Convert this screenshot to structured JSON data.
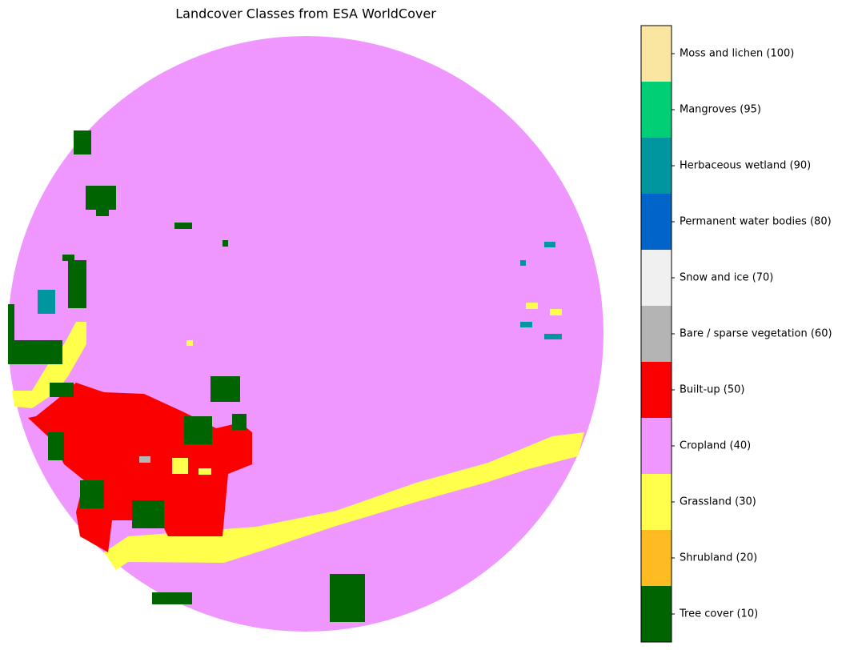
{
  "title": "Landcover Classes from ESA WorldCover",
  "legend": [
    {
      "label": "Tree cover (10)",
      "color": "#006400"
    },
    {
      "label": "Shrubland (20)",
      "color": "#ffbb22"
    },
    {
      "label": "Grassland (30)",
      "color": "#ffff4c"
    },
    {
      "label": "Cropland (40)",
      "color": "#f096ff"
    },
    {
      "label": "Built-up (50)",
      "color": "#fa0000"
    },
    {
      "label": "Bare / sparse vegetation (60)",
      "color": "#b4b4b4"
    },
    {
      "label": "Snow and ice (70)",
      "color": "#f0f0f0"
    },
    {
      "label": "Permanent water bodies (80)",
      "color": "#0064c8"
    },
    {
      "label": "Herbaceous wetland (90)",
      "color": "#0096a0"
    },
    {
      "label": "Mangroves (95)",
      "color": "#00cf75"
    },
    {
      "label": "Moss and lichen (100)",
      "color": "#fae6a0"
    }
  ]
}
